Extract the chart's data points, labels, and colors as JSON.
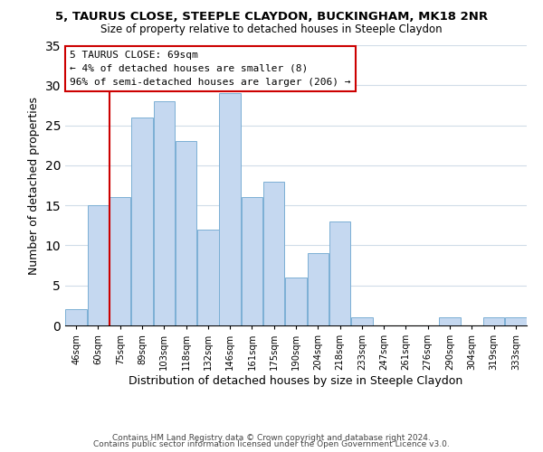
{
  "title_line1": "5, TAURUS CLOSE, STEEPLE CLAYDON, BUCKINGHAM, MK18 2NR",
  "title_line2": "Size of property relative to detached houses in Steeple Claydon",
  "xlabel": "Distribution of detached houses by size in Steeple Claydon",
  "ylabel": "Number of detached properties",
  "bin_labels": [
    "46sqm",
    "60sqm",
    "75sqm",
    "89sqm",
    "103sqm",
    "118sqm",
    "132sqm",
    "146sqm",
    "161sqm",
    "175sqm",
    "190sqm",
    "204sqm",
    "218sqm",
    "233sqm",
    "247sqm",
    "261sqm",
    "276sqm",
    "290sqm",
    "304sqm",
    "319sqm",
    "333sqm"
  ],
  "bar_values": [
    2,
    15,
    16,
    26,
    28,
    23,
    12,
    29,
    16,
    18,
    6,
    9,
    13,
    1,
    0,
    0,
    0,
    1,
    0,
    1,
    1
  ],
  "bar_color": "#c5d8f0",
  "bar_edge_color": "#7bafd4",
  "ref_line_label": "5 TAURUS CLOSE: 69sqm",
  "annotation_line2": "← 4% of detached houses are smaller (8)",
  "annotation_line3": "96% of semi-detached houses are larger (206) →",
  "annotation_box_edge": "#cc0000",
  "annotation_box_face": "#ffffff",
  "ref_line_color": "#cc0000",
  "ylim": [
    0,
    35
  ],
  "yticks": [
    0,
    5,
    10,
    15,
    20,
    25,
    30,
    35
  ],
  "footer_line1": "Contains HM Land Registry data © Crown copyright and database right 2024.",
  "footer_line2": "Contains public sector information licensed under the Open Government Licence v3.0.",
  "background_color": "#ffffff",
  "grid_color": "#d0dce8"
}
